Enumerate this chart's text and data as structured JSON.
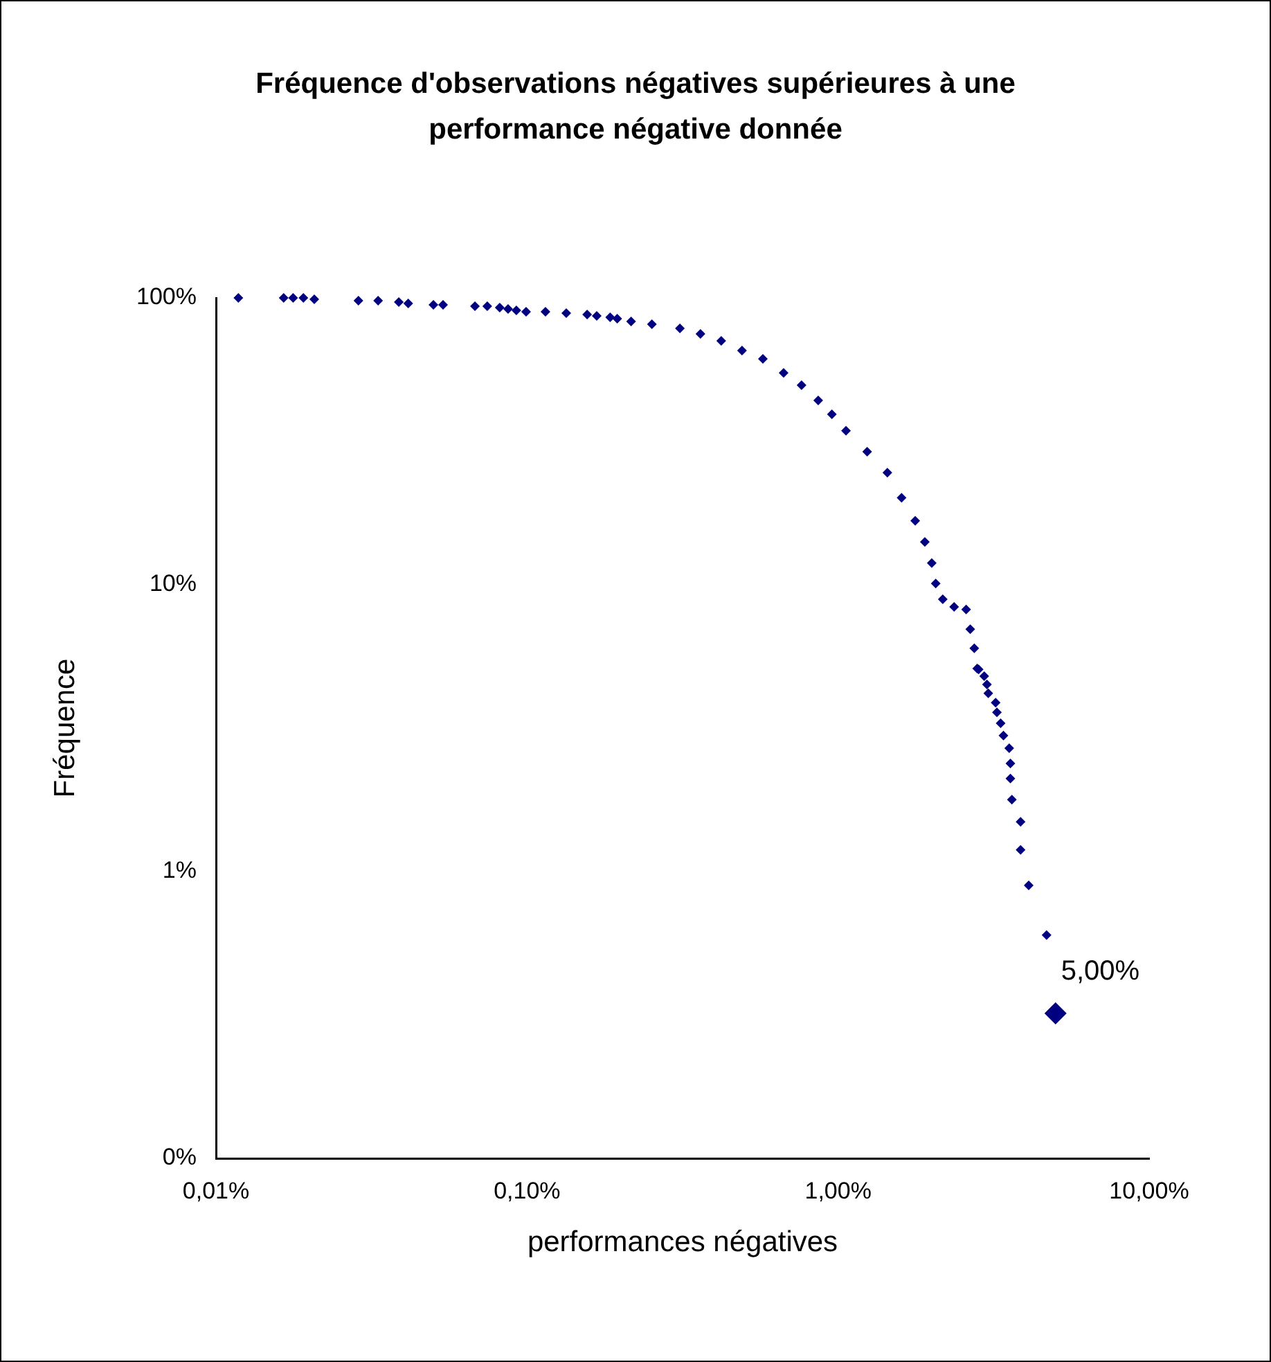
{
  "chart_data": {
    "type": "scatter",
    "title": "Fréquence d'observations négatives supérieures à une performance négative donnée",
    "xlabel": "performances négatives",
    "ylabel": "Fréquence",
    "log": "xy",
    "grid": false,
    "legend": false,
    "marker": "diamond",
    "xlim": [
      0.01,
      10
    ],
    "xticks": [
      {
        "value": 0.01,
        "label": "0,01%"
      },
      {
        "value": 0.1,
        "label": "0,10%"
      },
      {
        "value": 1,
        "label": "1,00%"
      },
      {
        "value": 10,
        "label": "10,00%"
      }
    ],
    "ylim": [
      0.1,
      100
    ],
    "yticks": [
      {
        "value": 0.1,
        "label": "0%"
      },
      {
        "value": 1,
        "label": "1%"
      },
      {
        "value": 10,
        "label": "10%"
      },
      {
        "value": 100,
        "label": "100%"
      }
    ],
    "series": [
      {
        "color": "#000080",
        "x": [
          0.0118,
          0.0165,
          0.0177,
          0.0191,
          0.0207,
          0.0287,
          0.0332,
          0.0387,
          0.0415,
          0.05,
          0.0537,
          0.068,
          0.0745,
          0.0817,
          0.0869,
          0.0924,
          0.0993,
          0.1146,
          0.1337,
          0.156,
          0.1675,
          0.185,
          0.195,
          0.216,
          0.252,
          0.31,
          0.361,
          0.421,
          0.491,
          0.573,
          0.668,
          0.763,
          0.863,
          0.955,
          1.06,
          1.24,
          1.44,
          1.6,
          1.77,
          1.9,
          2.0,
          2.06,
          2.17,
          2.36,
          2.58,
          2.66,
          2.74,
          2.8,
          2.83,
          2.95,
          3.01,
          3.04,
          3.21,
          3.24,
          3.33,
          3.4,
          3.55,
          3.58,
          3.58,
          3.62,
          3.86,
          3.86,
          4.1,
          4.68
        ],
        "values": [
          100,
          100,
          100,
          100,
          98.9,
          97.8,
          97.8,
          96.7,
          95.6,
          94.6,
          94.6,
          93.5,
          93.5,
          92.5,
          91.5,
          90.5,
          89.5,
          89.5,
          88.5,
          87.5,
          86.5,
          85.6,
          84.6,
          82.8,
          80.9,
          78.3,
          74.9,
          70.8,
          65.5,
          61.3,
          54.8,
          49.6,
          43.9,
          39.3,
          34.4,
          29.1,
          24.6,
          20.1,
          16.7,
          14.1,
          11.9,
          10.1,
          8.9,
          8.37,
          8.2,
          7.0,
          6.0,
          5.1,
          5.07,
          4.8,
          4.49,
          4.18,
          3.88,
          3.59,
          3.29,
          2.98,
          2.69,
          2.38,
          2.11,
          1.78,
          1.49,
          1.19,
          0.895,
          0.6
        ]
      },
      {
        "color": "#000080",
        "x": [
          5
        ],
        "values": [
          0.32
        ]
      }
    ],
    "annotations": [
      {
        "text": "5,00%",
        "x": 5,
        "y": 0.32
      }
    ]
  }
}
